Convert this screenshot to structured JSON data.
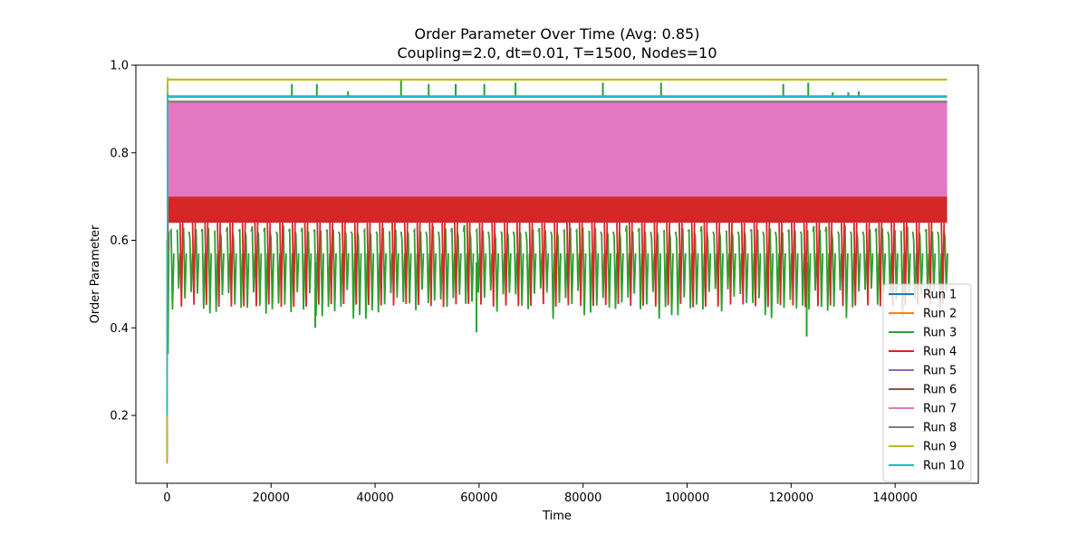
{
  "chart_data": {
    "type": "line",
    "title": "Order Parameter Over Time (Avg: 0.85)",
    "subtitle": "Coupling=2.0, dt=0.01, T=1500, Nodes=10",
    "xlabel": "Time",
    "ylabel": "Order Parameter",
    "xlim": [
      -6000,
      156000
    ],
    "ylim": [
      0.045,
      1.0
    ],
    "xticks": [
      0,
      20000,
      40000,
      60000,
      80000,
      100000,
      120000,
      140000
    ],
    "xtick_labels": [
      "0",
      "20000",
      "40000",
      "60000",
      "80000",
      "100000",
      "120000",
      "140000"
    ],
    "yticks": [
      0.2,
      0.4,
      0.6,
      0.8,
      1.0
    ],
    "ytick_labels": [
      "0.2",
      "0.4",
      "0.6",
      "0.8",
      "1.0"
    ],
    "grid": false,
    "legend_position": "lower-right",
    "series": [
      {
        "name": "Run 1",
        "color": "#1f77b4",
        "start": 0.19,
        "steady_low": 0.925,
        "steady_high": 0.93,
        "x_end": 150000
      },
      {
        "name": "Run 2",
        "color": "#ff7f0e",
        "start": 0.09,
        "steady_low": 0.926,
        "steady_high": 0.93,
        "x_end": 150000
      },
      {
        "name": "Run 3",
        "color": "#2ca02c",
        "start": 0.1,
        "steady_low": 0.41,
        "steady_high": 0.96,
        "x_end": 150000
      },
      {
        "name": "Run 4",
        "color": "#d62728",
        "start": 0.1,
        "steady_low": 0.455,
        "steady_high": 0.7,
        "x_end": 150000
      },
      {
        "name": "Run 5",
        "color": "#9467bd",
        "start": 0.1,
        "steady_low": 0.915,
        "steady_high": 0.918,
        "x_end": 150000
      },
      {
        "name": "Run 6",
        "color": "#8c564b",
        "start": 0.1,
        "steady_low": 0.65,
        "steady_high": 0.72,
        "x_end": 150000
      },
      {
        "name": "Run 7",
        "color": "#e377c2",
        "start": 0.2,
        "steady_low": 0.7,
        "steady_high": 0.915,
        "x_end": 150000
      },
      {
        "name": "Run 8",
        "color": "#7f7f7f",
        "start": 0.1,
        "steady_low": 0.915,
        "steady_high": 0.918,
        "x_end": 150000
      },
      {
        "name": "Run 9",
        "color": "#bcbd22",
        "start": 0.1,
        "steady_low": 0.967,
        "steady_high": 0.967,
        "x_end": 150000
      },
      {
        "name": "Run 10",
        "color": "#17becf",
        "start": 0.2,
        "steady_low": 0.928,
        "steady_high": 0.93,
        "x_end": 150000
      }
    ],
    "run3_spikes_up": [
      {
        "x": 24000,
        "y": 0.957
      },
      {
        "x": 28800,
        "y": 0.957
      },
      {
        "x": 34800,
        "y": 0.94
      },
      {
        "x": 45000,
        "y": 0.965
      },
      {
        "x": 50300,
        "y": 0.957
      },
      {
        "x": 55500,
        "y": 0.957
      },
      {
        "x": 61000,
        "y": 0.957
      },
      {
        "x": 67000,
        "y": 0.96
      },
      {
        "x": 83800,
        "y": 0.96
      },
      {
        "x": 95000,
        "y": 0.96
      },
      {
        "x": 118500,
        "y": 0.957
      },
      {
        "x": 123300,
        "y": 0.96
      },
      {
        "x": 128000,
        "y": 0.938
      },
      {
        "x": 131000,
        "y": 0.938
      },
      {
        "x": 133000,
        "y": 0.94
      }
    ],
    "run3_spikes_down": [
      {
        "x": 28500,
        "y": 0.4
      },
      {
        "x": 59500,
        "y": 0.39
      },
      {
        "x": 123000,
        "y": 0.38
      }
    ]
  }
}
